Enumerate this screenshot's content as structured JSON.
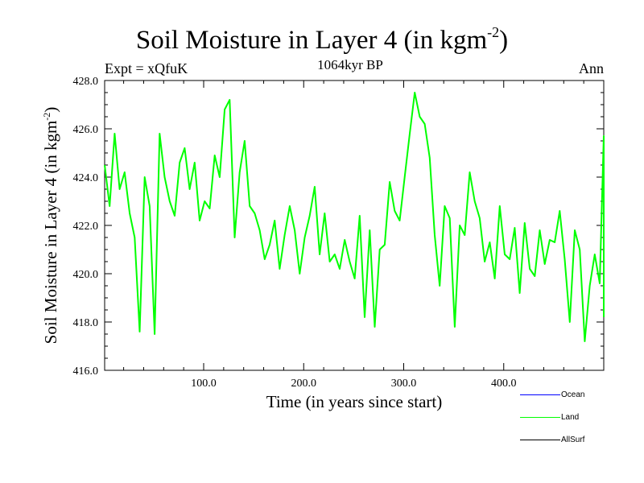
{
  "header": {
    "title_main": "Soil Moisture in Layer 4 (in kgm",
    "title_sup": "-2",
    "title_close": ")",
    "experiment": "Expt = xQfuK",
    "period": "1064kyr BP",
    "season": "Ann"
  },
  "colors": {
    "ocean": "#0000ff",
    "land": "#00ff00",
    "allsurf": "#000000"
  },
  "chart_data": {
    "type": "line",
    "title": "Soil Moisture in Layer 4 (in kgm-2)",
    "xlabel": "Time (in years since start)",
    "ylabel_main": "Soil Moisture in Layer 4 (in kgm",
    "ylabel_sup": "-2",
    "ylabel_close": ")",
    "xlim": [
      1,
      500
    ],
    "ylim": [
      416.0,
      428.0
    ],
    "x_ticks": [
      100,
      200,
      300,
      400
    ],
    "x_tick_labels": [
      "100.0",
      "200.0",
      "300.0",
      "400.0"
    ],
    "y_ticks": [
      416,
      418,
      420,
      422,
      424,
      426,
      428
    ],
    "y_tick_labels": [
      "416.0",
      "418.0",
      "420.0",
      "422.0",
      "424.0",
      "426.0",
      "428.0"
    ],
    "legend": [
      "Ocean",
      "Land",
      "AllSurf"
    ],
    "series": [
      {
        "name": "Land",
        "x_start": 1,
        "x_step": 5,
        "values": [
          424.5,
          422.8,
          425.8,
          423.5,
          424.2,
          422.5,
          421.5,
          417.6,
          424.0,
          422.8,
          417.5,
          425.8,
          424.0,
          423.0,
          422.4,
          424.6,
          425.2,
          423.5,
          424.6,
          422.2,
          423.0,
          422.7,
          424.9,
          424.0,
          426.8,
          427.2,
          421.5,
          424.2,
          425.5,
          422.8,
          422.5,
          421.8,
          420.6,
          421.2,
          422.2,
          420.2,
          421.6,
          422.8,
          421.8,
          420.0,
          421.5,
          422.4,
          423.6,
          420.8,
          422.5,
          420.5,
          420.8,
          420.2,
          421.4,
          420.5,
          419.8,
          422.4,
          418.2,
          421.8,
          417.8,
          421.0,
          421.2,
          423.8,
          422.6,
          422.2,
          424.0,
          425.8,
          427.5,
          426.5,
          426.2,
          424.8,
          421.6,
          419.5,
          422.8,
          422.3,
          417.8,
          422.0,
          421.6,
          424.2,
          423.0,
          422.3,
          420.5,
          421.3,
          419.8,
          422.8,
          420.8,
          420.6,
          421.9,
          419.2,
          422.1,
          420.2,
          419.9,
          421.8,
          420.4,
          421.4,
          421.3,
          422.6,
          420.6,
          418.0,
          421.8,
          421.0,
          417.2,
          419.5,
          420.8,
          419.6,
          425.7,
          418.2
        ]
      }
    ]
  },
  "legend_labels": {
    "ocean": "Ocean",
    "land": "Land",
    "allsurf": "AllSurf"
  }
}
